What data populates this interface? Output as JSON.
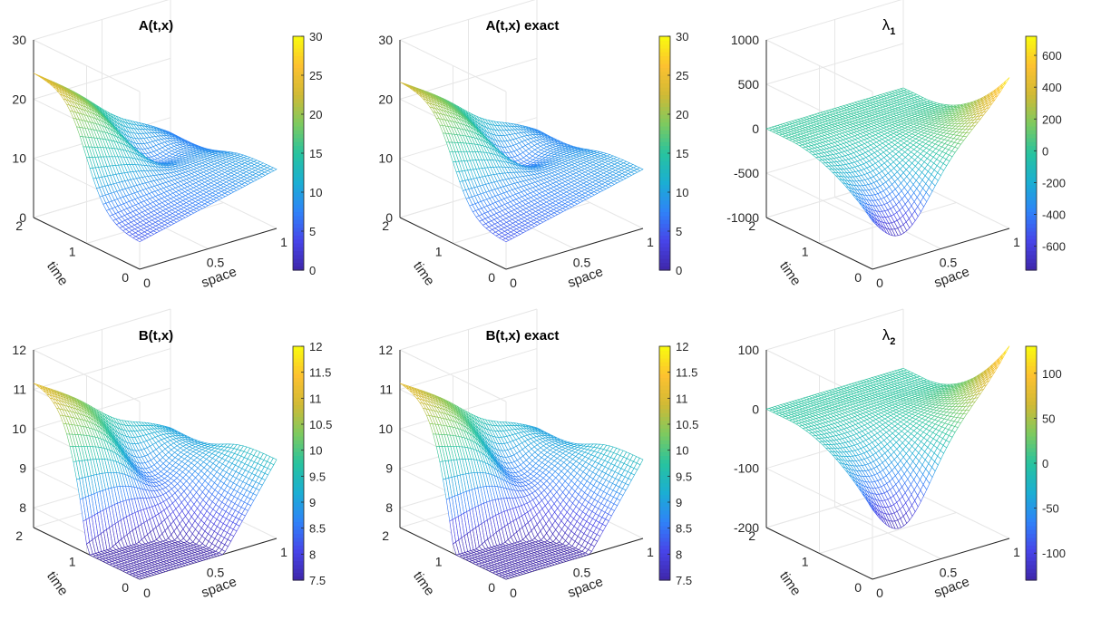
{
  "colors": {
    "colormap": [
      "#3e26a8",
      "#4744e8",
      "#2f82f8",
      "#1baed3",
      "#27c39f",
      "#7cca60",
      "#d0ba35",
      "#fdc130",
      "#f9fb0e"
    ],
    "grid": "#e6e6e6",
    "axis": "#262626"
  },
  "chart_data": [
    {
      "type": "surface",
      "title": "A(t,x)",
      "xlabel": "space",
      "ylabel": "time",
      "zlim": [
        0,
        30
      ],
      "z_ticks": [
        "0",
        "10",
        "20",
        "30"
      ],
      "time_ticks": [
        "0",
        "1",
        "2"
      ],
      "space_ticks": [
        "0",
        "0.5",
        "1"
      ],
      "colorbar_range": [
        0,
        30
      ],
      "colorbar_ticks": [
        "0",
        "5",
        "10",
        "15",
        "20",
        "25",
        "30"
      ],
      "shape": "A",
      "values": {
        "low": 0,
        "at_x0_t2": 24.5,
        "at_x1_t2": 7.5,
        "at_x1_t0": 10,
        "basin": 2
      }
    },
    {
      "type": "surface",
      "title": "A(t,x) exact",
      "xlabel": "space",
      "ylabel": "time",
      "zlim": [
        0,
        30
      ],
      "z_ticks": [
        "0",
        "10",
        "20",
        "30"
      ],
      "time_ticks": [
        "0",
        "1",
        "2"
      ],
      "space_ticks": [
        "0",
        "0.5",
        "1"
      ],
      "colorbar_range": [
        0,
        30
      ],
      "colorbar_ticks": [
        "0",
        "5",
        "10",
        "15",
        "20",
        "25",
        "30"
      ],
      "shape": "A",
      "values": {
        "low": 0,
        "at_x0_t2": 23,
        "at_x1_t2": 8,
        "at_x1_t0": 10,
        "basin": 2
      }
    },
    {
      "type": "surface",
      "title": "λ",
      "title_sub": "1",
      "xlabel": "space",
      "ylabel": "time",
      "zlim": [
        -1000,
        1000
      ],
      "z_ticks": [
        "-1000",
        "-500",
        "0",
        "500",
        "1000"
      ],
      "time_ticks": [
        "0",
        "1",
        "2"
      ],
      "space_ticks": [
        "0",
        "0.5",
        "1"
      ],
      "colorbar_range": [
        -750,
        720
      ],
      "colorbar_ticks": [
        "-600",
        "-400",
        "-200",
        "0",
        "200",
        "400",
        "600"
      ],
      "shape": "lambda",
      "values": {
        "peak": 700,
        "trough": -750
      }
    },
    {
      "type": "surface",
      "title": "B(t,x)",
      "xlabel": "space",
      "ylabel": "time",
      "zlim": [
        7.5,
        12
      ],
      "z_ticks": [
        "8",
        "9",
        "10",
        "11",
        "12"
      ],
      "time_ticks": [
        "0",
        "1",
        "2"
      ],
      "space_ticks": [
        "0",
        "0.5",
        "1"
      ],
      "colorbar_range": [
        7.5,
        12
      ],
      "colorbar_ticks": [
        "7.5",
        "8",
        "8.5",
        "9",
        "9.5",
        "10",
        "10.5",
        "11",
        "11.5",
        "12"
      ],
      "shape": "B",
      "values": {
        "low": 7.5,
        "at_x0_t2": 11.2,
        "at_x1_t2": 9.0,
        "at_x1_t0": 9.5,
        "basin": 8.0
      }
    },
    {
      "type": "surface",
      "title": "B(t,x) exact",
      "xlabel": "space",
      "ylabel": "time",
      "zlim": [
        7.5,
        12
      ],
      "z_ticks": [
        "8",
        "9",
        "10",
        "11",
        "12"
      ],
      "time_ticks": [
        "0",
        "1",
        "2"
      ],
      "space_ticks": [
        "0",
        "0.5",
        "1"
      ],
      "colorbar_range": [
        7.5,
        12
      ],
      "colorbar_ticks": [
        "7.5",
        "8",
        "8.5",
        "9",
        "9.5",
        "10",
        "10.5",
        "11",
        "11.5",
        "12"
      ],
      "shape": "B",
      "values": {
        "low": 7.5,
        "at_x0_t2": 11.2,
        "at_x1_t2": 9.0,
        "at_x1_t0": 9.5,
        "basin": 8.0
      }
    },
    {
      "type": "surface",
      "title": "λ",
      "title_sub": "2",
      "xlabel": "space",
      "ylabel": "time",
      "zlim": [
        -200,
        100
      ],
      "z_ticks": [
        "-200",
        "-100",
        "0",
        "100"
      ],
      "time_ticks": [
        "0",
        "1",
        "2"
      ],
      "space_ticks": [
        "0",
        "0.5",
        "1"
      ],
      "colorbar_range": [
        -130,
        130
      ],
      "colorbar_ticks": [
        "-100",
        "-50",
        "0",
        "50",
        "100"
      ],
      "shape": "lambda",
      "values": {
        "peak": 125,
        "trough": -135
      }
    }
  ]
}
